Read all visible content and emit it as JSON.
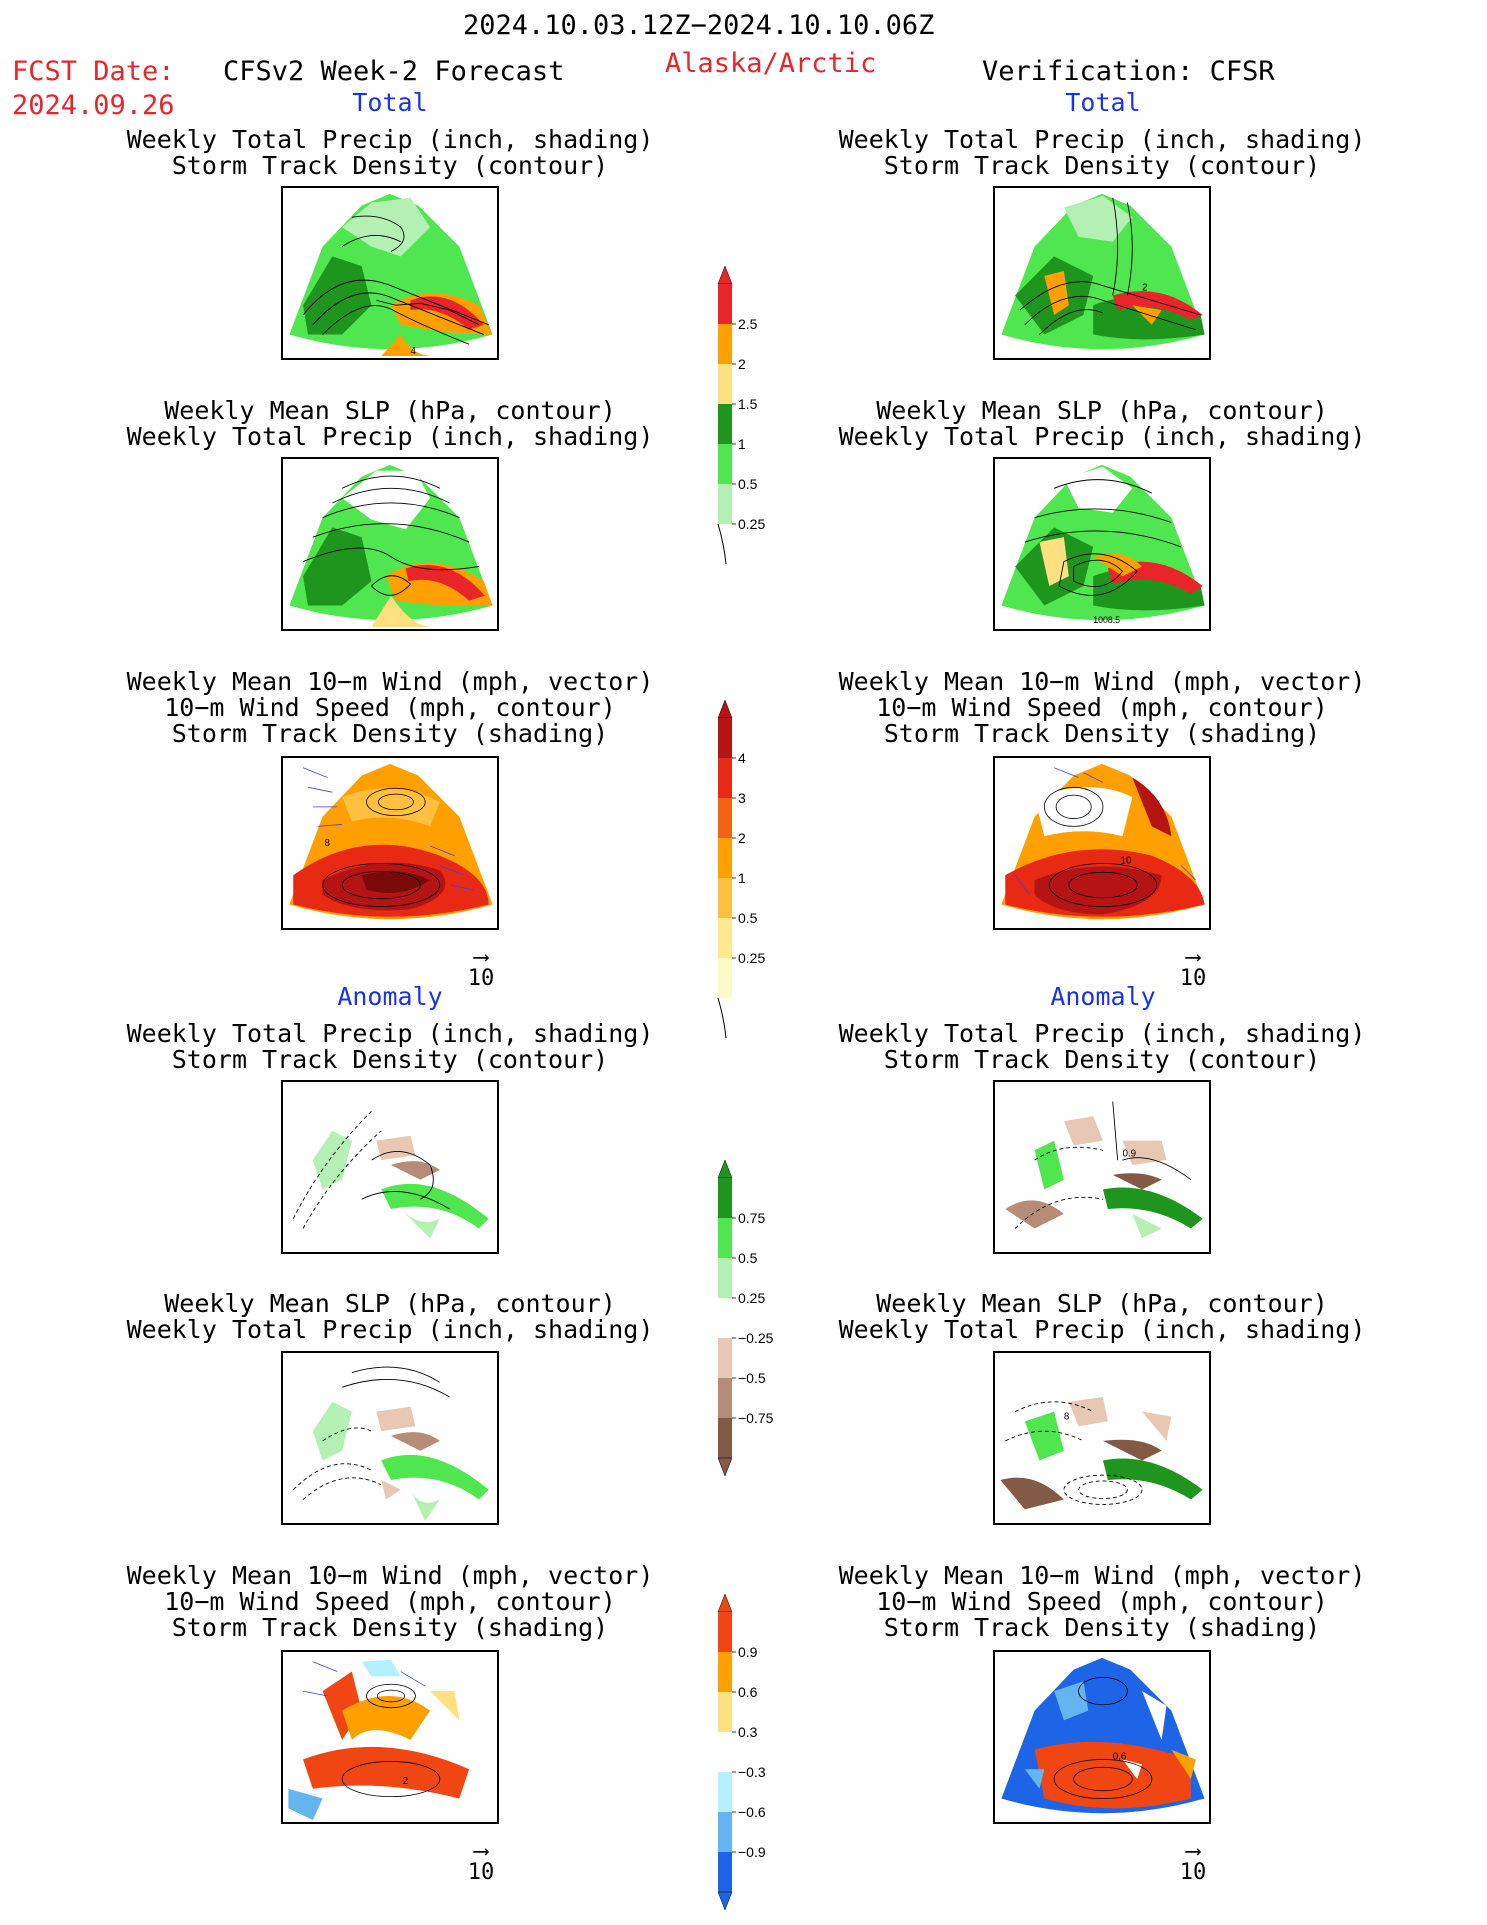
{
  "header": {
    "period": "2024.10.03.12Z−2024.10.10.06Z",
    "fcst_date_label": "FCST Date:",
    "fcst_date": "2024.09.26",
    "model": "CFSv2 Week-2 Forecast",
    "region": "Alaska/Arctic",
    "verification": "Verification: CFSR"
  },
  "sections": {
    "total": "Total",
    "anomaly": "Anomaly"
  },
  "titles": {
    "precip_storm": [
      "Weekly Total Precip (inch, shading)",
      "Storm Track Density (contour)"
    ],
    "slp_precip": [
      "Weekly Mean SLP (hPa, contour)",
      "Weekly Total Precip (inch, shading)"
    ],
    "wind_storm": [
      "Weekly Mean 10−m Wind (mph, vector)",
      "10−m Wind Speed (mph, contour)",
      "Storm Track Density (shading)"
    ]
  },
  "vector_ref": "10",
  "colorbars": {
    "precip_total": {
      "labels": [
        "2.5",
        "2",
        "1.5",
        "1",
        "0.5",
        "0.25"
      ],
      "colors": [
        "#e8262a",
        "#ffa000",
        "#ffe080",
        "#1e961e",
        "#50e650",
        "#b4f0b4"
      ]
    },
    "storm_total": {
      "labels": [
        "4",
        "3",
        "2",
        "1",
        "0.5",
        "0.25"
      ],
      "colors": [
        "#b41414",
        "#e82a14",
        "#f06414",
        "#ffa000",
        "#ffc040",
        "#ffe890",
        "#fffac8"
      ]
    },
    "precip_anom": {
      "labels": [
        "0.75",
        "0.5",
        "0.25",
        "−0.25",
        "−0.5",
        "−0.75"
      ],
      "colors": [
        "#1e961e",
        "#50e650",
        "#b4f0b4",
        "#ffffff",
        "#e6c8b4",
        "#b48c78",
        "#825a46"
      ]
    },
    "storm_anom": {
      "labels": [
        "0.9",
        "0.6",
        "0.3",
        "−0.3",
        "−0.6",
        "−0.9"
      ],
      "colors": [
        "#f04614",
        "#ffa000",
        "#ffe080",
        "#ffffff",
        "#b4f0ff",
        "#64b4f0",
        "#1e64e6"
      ]
    }
  },
  "panel_annotations": {
    "p1": "4",
    "p2": "2",
    "p4": "1008.5",
    "p5": "8",
    "p6": "10",
    "p8": "0.9",
    "p10": "8",
    "p11": "2",
    "p12": "0.6"
  }
}
